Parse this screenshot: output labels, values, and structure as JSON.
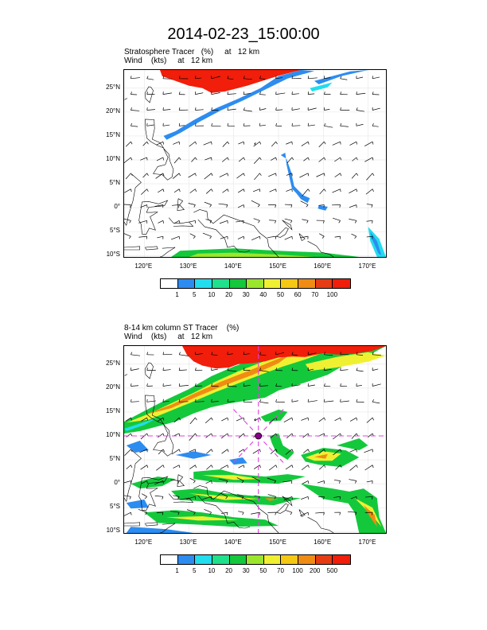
{
  "title": "2014-02-23_15:00:00",
  "panels": [
    {
      "id": "top",
      "line1": "Stratosphere Tracer   (%)     at   12 km",
      "line2": "Wind    (kts)     at   12 km",
      "colorbar_labels": [
        "1",
        "5",
        "10",
        "20",
        "30",
        "40",
        "50",
        "60",
        "70",
        "100"
      ],
      "colorbar_colors": [
        "#ffffff",
        "#2d8cf0",
        "#22ddee",
        "#1fe08c",
        "#14c83c",
        "#9be62d",
        "#f0f032",
        "#f5c814",
        "#f08c14",
        "#e63c14",
        "#f01e0a"
      ]
    },
    {
      "id": "bottom",
      "line1": "8-14 km column ST Tracer    (%)",
      "line2": "Wind    (kts)     at   12 km",
      "colorbar_labels": [
        "1",
        "5",
        "10",
        "20",
        "30",
        "50",
        "70",
        "100",
        "200",
        "500"
      ],
      "colorbar_colors": [
        "#ffffff",
        "#2d8cf0",
        "#22ddee",
        "#1fe08c",
        "#14c83c",
        "#9be62d",
        "#f0f032",
        "#f5c814",
        "#f08c14",
        "#e63c14",
        "#f01e0a"
      ]
    }
  ],
  "lat_labels": [
    "25°N",
    "20°N",
    "15°N",
    "10°N",
    "5°N",
    "0°",
    "5°S",
    "10°S"
  ],
  "lon_labels": [
    "120°E",
    "130°E",
    "140°E",
    "150°E",
    "160°E",
    "170°E"
  ],
  "lat_values": [
    25,
    20,
    15,
    10,
    5,
    0,
    -5,
    -10
  ],
  "lon_values": [
    120,
    130,
    140,
    150,
    160,
    170
  ],
  "domain": {
    "lon_min": 115.5,
    "lon_max": 174,
    "lat_min": -10.3,
    "lat_max": 28.8
  },
  "storm_center": {
    "lon": 145.5,
    "lat": 10
  },
  "colors": {
    "red_tracer": "#f01e0a",
    "guide_lines": "#e040e0",
    "storm_marker": "#8a008a"
  }
}
